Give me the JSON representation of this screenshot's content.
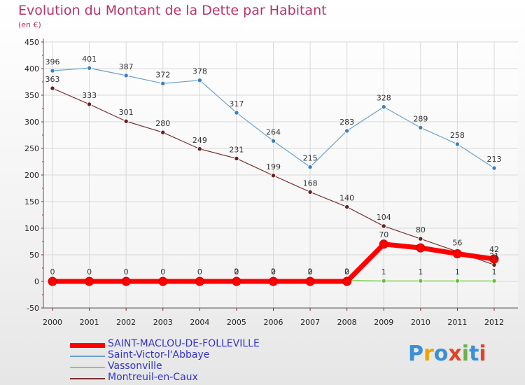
{
  "title": "Evolution du Montant de la Dette par Habitant",
  "subtitle": "(en €)",
  "brand": "Proxiti",
  "brand_colors": [
    "#3b8fd6",
    "#f0a000",
    "#3b8fd6",
    "#e0452a",
    "#6ab04c",
    "#3b8fd6",
    "#e0452a"
  ],
  "chart_data": {
    "type": "line",
    "x": [
      "2000",
      "2001",
      "2002",
      "2003",
      "2004",
      "2005",
      "2006",
      "2007",
      "2008",
      "2009",
      "2010",
      "2011",
      "2012"
    ],
    "ylim": [
      -50,
      450
    ],
    "yticks": [
      "-50",
      "0",
      "50",
      "100",
      "150",
      "200",
      "250",
      "300",
      "350",
      "400",
      "450"
    ],
    "grid": true,
    "legend_position": "bottom-left",
    "series": [
      {
        "name": "SAINT-MACLOU-DE-FOLLEVILLE",
        "color": "#ff0000",
        "values": [
          0,
          0,
          0,
          0,
          0,
          0,
          0,
          0,
          0,
          70,
          63,
          52,
          42
        ],
        "labels": [
          "0",
          "0",
          "0",
          "0",
          "0",
          "0",
          "0",
          "0",
          "0",
          "70",
          "",
          "",
          "42"
        ]
      },
      {
        "name": "Saint-Victor-l'Abbaye",
        "color": "#6aa0d0",
        "values": [
          396,
          401,
          387,
          372,
          378,
          317,
          264,
          215,
          283,
          328,
          289,
          258,
          213
        ],
        "labels": [
          "396",
          "401",
          "387",
          "372",
          "378",
          "317",
          "264",
          "215",
          "283",
          "328",
          "289",
          "258",
          "213"
        ]
      },
      {
        "name": "Vassonville",
        "color": "#88d060",
        "values": [
          2,
          2,
          2,
          2,
          2,
          2,
          2,
          2,
          2,
          1,
          1,
          1,
          1
        ],
        "labels": [
          "",
          "",
          "",
          "",
          "",
          "2",
          "2",
          "2",
          "2",
          "1",
          "1",
          "1",
          "1"
        ]
      },
      {
        "name": "Montreuil-en-Caux",
        "color": "#7a3030",
        "values": [
          363,
          333,
          301,
          280,
          249,
          231,
          199,
          168,
          140,
          104,
          80,
          56,
          31
        ],
        "labels": [
          "363",
          "333",
          "301",
          "280",
          "249",
          "231",
          "199",
          "168",
          "140",
          "104",
          "80",
          "56",
          "31"
        ]
      }
    ]
  }
}
